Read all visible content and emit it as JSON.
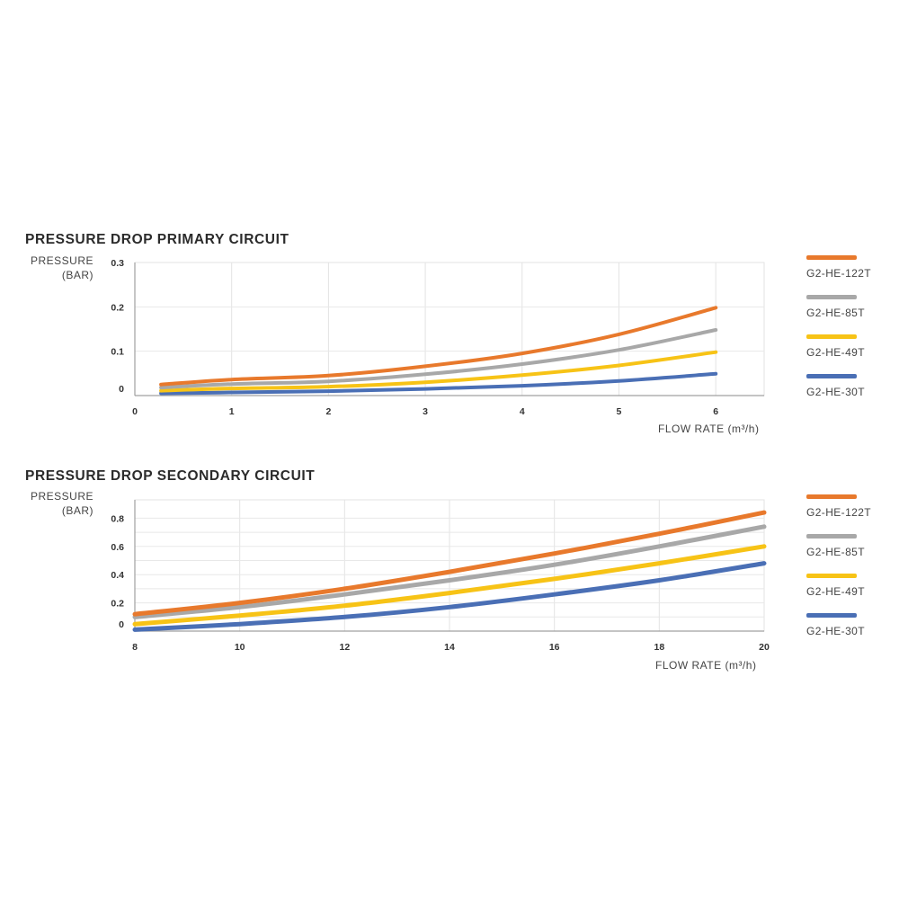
{
  "chart_data": [
    {
      "type": "line",
      "title": "PRESSURE DROP PRIMARY CIRCUIT",
      "ylabel": [
        "PRESSURE",
        "(BAR)"
      ],
      "xlabel": "FLOW RATE (m³/h)",
      "xlim": [
        0,
        6.5
      ],
      "ylim": [
        0,
        0.3
      ],
      "xticks": [
        0,
        1,
        2,
        3,
        4,
        5,
        6
      ],
      "xtick_labels": [
        "0",
        "1",
        "2",
        "3",
        "4",
        "5",
        "6"
      ],
      "yticks": [
        0,
        0.1,
        0.2,
        0.3
      ],
      "ytick_labels": [
        "0",
        "0.1",
        "0.2",
        "0.3"
      ],
      "grid": true,
      "legend_position": "right",
      "x": [
        0.27,
        1,
        2,
        3,
        4,
        5,
        6
      ],
      "series": [
        {
          "name": "G2-HE-122T",
          "color": "#e8792c",
          "values": [
            0.025,
            0.036,
            0.045,
            0.066,
            0.095,
            0.138,
            0.198
          ]
        },
        {
          "name": "G2-HE-85T",
          "color": "#a8a8a8",
          "values": [
            0.018,
            0.026,
            0.032,
            0.048,
            0.071,
            0.103,
            0.148
          ]
        },
        {
          "name": "G2-HE-49T",
          "color": "#f7c316",
          "values": [
            0.011,
            0.016,
            0.02,
            0.03,
            0.046,
            0.068,
            0.098
          ]
        },
        {
          "name": "G2-HE-30T",
          "color": "#4a6fb5",
          "values": [
            0.005,
            0.007,
            0.01,
            0.015,
            0.022,
            0.033,
            0.049
          ]
        }
      ]
    },
    {
      "type": "line",
      "title": "PRESSURE DROP SECONDARY CIRCUIT",
      "ylabel": [
        "PRESSURE",
        "(BAR)"
      ],
      "xlabel": "FLOW RATE (m³/h)",
      "xlim": [
        8,
        20
      ],
      "ylim": [
        0,
        0.93
      ],
      "xticks": [
        8,
        10,
        12,
        14,
        16,
        18,
        20
      ],
      "xtick_labels": [
        "8",
        "10",
        "12",
        "14",
        "16",
        "18",
        "20"
      ],
      "yticks": [
        0,
        0.2,
        0.4,
        0.6,
        0.8
      ],
      "ytick_labels": [
        "0",
        "0.2",
        "0.4",
        "0.6",
        "0.8"
      ],
      "grid": true,
      "legend_position": "right",
      "x": [
        8,
        10,
        12,
        14,
        16,
        18,
        20
      ],
      "series": [
        {
          "name": "G2-HE-122T",
          "color": "#e8792c",
          "values": [
            0.12,
            0.2,
            0.3,
            0.42,
            0.55,
            0.69,
            0.84
          ]
        },
        {
          "name": "G2-HE-85T",
          "color": "#a8a8a8",
          "values": [
            0.1,
            0.17,
            0.26,
            0.36,
            0.47,
            0.6,
            0.74
          ]
        },
        {
          "name": "G2-HE-49T",
          "color": "#f7c316",
          "values": [
            0.05,
            0.11,
            0.18,
            0.27,
            0.37,
            0.48,
            0.6
          ]
        },
        {
          "name": "G2-HE-30T",
          "color": "#4a6fb5",
          "values": [
            0.01,
            0.05,
            0.1,
            0.17,
            0.26,
            0.36,
            0.48
          ]
        }
      ]
    }
  ]
}
